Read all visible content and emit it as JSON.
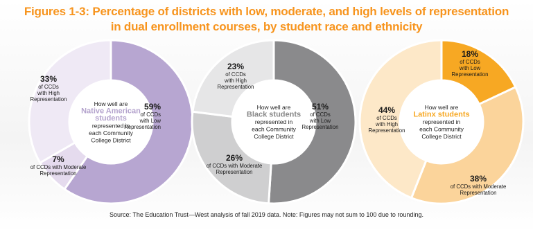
{
  "title_line1": "Figures 1-3: Percentage of districts with low, moderate, and high levels of representation",
  "title_line2": "in dual enrollment courses, by student race and ethnicity",
  "source": "Source: The Education Trust—West analysis of fall 2019 data. Note: Figures may not sum to 100 due to rounding.",
  "chart_data": [
    {
      "type": "pie",
      "group": "Native American students",
      "center_text": [
        "How well are",
        "Native American",
        "students",
        "represented in",
        "each Community",
        "College District"
      ],
      "accent": "#b4a3cd",
      "slices": [
        {
          "label": "of CCDs with Low Representation",
          "value": 59,
          "color": "#b7a6d1"
        },
        {
          "label": "of CCDs with Moderate Representation",
          "value": 7,
          "color": "#e5dbee"
        },
        {
          "label": "of CCDs with High Representation",
          "value": 33,
          "color": "#efe9f5"
        }
      ],
      "labels": [
        {
          "pct": "59%",
          "lines": [
            "of CCDs",
            "with Low",
            "Representation"
          ]
        },
        {
          "pct": "7%",
          "lines": [
            "of CCDs with Moderate",
            "Representation"
          ]
        },
        {
          "pct": "33%",
          "lines": [
            "of CCDs",
            "with High",
            "Representation"
          ]
        }
      ]
    },
    {
      "type": "pie",
      "group": "Black students",
      "center_text": [
        "How well are",
        "Black students",
        "represented in",
        "each Community",
        "College District"
      ],
      "accent": "#888888",
      "slices": [
        {
          "label": "of CCDs with Low Representation",
          "value": 51,
          "color": "#8a8a8c"
        },
        {
          "label": "of CCDs with Moderate Representation",
          "value": 26,
          "color": "#cfcfd0"
        },
        {
          "label": "of CCDs with High Representation",
          "value": 23,
          "color": "#e6e6e7"
        }
      ],
      "labels": [
        {
          "pct": "51%",
          "lines": [
            "of CCDs",
            "with Low",
            "Representation"
          ]
        },
        {
          "pct": "26%",
          "lines": [
            "of CCDs with Moderate",
            "Representation"
          ]
        },
        {
          "pct": "23%",
          "lines": [
            "of CCDs",
            "with High",
            "Representation"
          ]
        }
      ]
    },
    {
      "type": "pie",
      "group": "Latinx students",
      "center_text": [
        "How well are",
        "Latinx students",
        "represented in",
        "each Community",
        "College District"
      ],
      "accent": "#f7a823",
      "slices": [
        {
          "label": "of CCDs with Low Representation",
          "value": 18,
          "color": "#f7a823"
        },
        {
          "label": "of CCDs with Moderate Representation",
          "value": 38,
          "color": "#fbd49b"
        },
        {
          "label": "of CCDs with High Representation",
          "value": 44,
          "color": "#fde8c8"
        }
      ],
      "labels": [
        {
          "pct": "18%",
          "lines": [
            "of CCDs",
            "with Low",
            "Representation"
          ]
        },
        {
          "pct": "38%",
          "lines": [
            "of CCDs with Moderate",
            "Representation"
          ]
        },
        {
          "pct": "44%",
          "lines": [
            "of CCDs",
            "with High",
            "Representation"
          ]
        }
      ]
    }
  ]
}
